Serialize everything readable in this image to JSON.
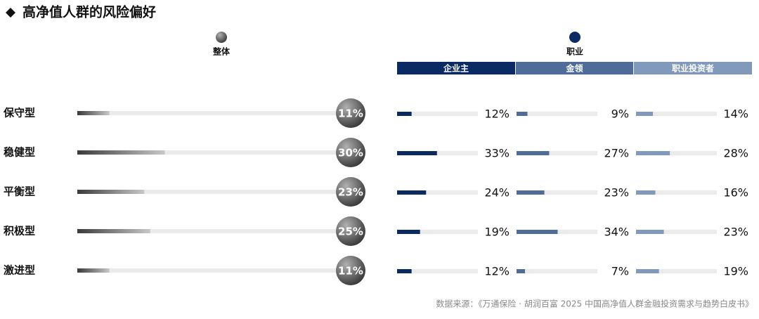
{
  "chart_data": {
    "type": "bar",
    "title": "高净值人群的风险偏好",
    "categories": [
      "保守型",
      "稳健型",
      "平衡型",
      "积极型",
      "激进型"
    ],
    "groups": [
      {
        "label": "整体",
        "color": "#808080",
        "series": [
          {
            "color": "#6e6e6e",
            "values": [
              11,
              30,
              23,
              25,
              11
            ],
            "value_labels": [
              "11%",
              "30%",
              "23%",
              "25%",
              "11%"
            ]
          }
        ]
      },
      {
        "label": "职业",
        "color": "#0b2a63",
        "series": [
          {
            "name": "企业主",
            "color": "#0b2a63",
            "values": [
              12,
              33,
              24,
              19,
              12
            ],
            "value_labels": [
              "12%",
              "33%",
              "24%",
              "19%",
              "12%"
            ]
          },
          {
            "name": "金领",
            "color": "#4f6c98",
            "values": [
              9,
              27,
              23,
              34,
              7
            ],
            "value_labels": [
              "9%",
              "27%",
              "23%",
              "34%",
              "7%"
            ]
          },
          {
            "name": "职业投资者",
            "color": "#8199bb",
            "values": [
              14,
              28,
              16,
              23,
              19
            ],
            "value_labels": [
              "14%",
              "28%",
              "16%",
              "23%",
              "19%"
            ]
          }
        ]
      }
    ],
    "source": "数据来源：《万通保险 · 胡润百富 2025 中国高净值人群金融投资需求与趋势白皮书》"
  }
}
